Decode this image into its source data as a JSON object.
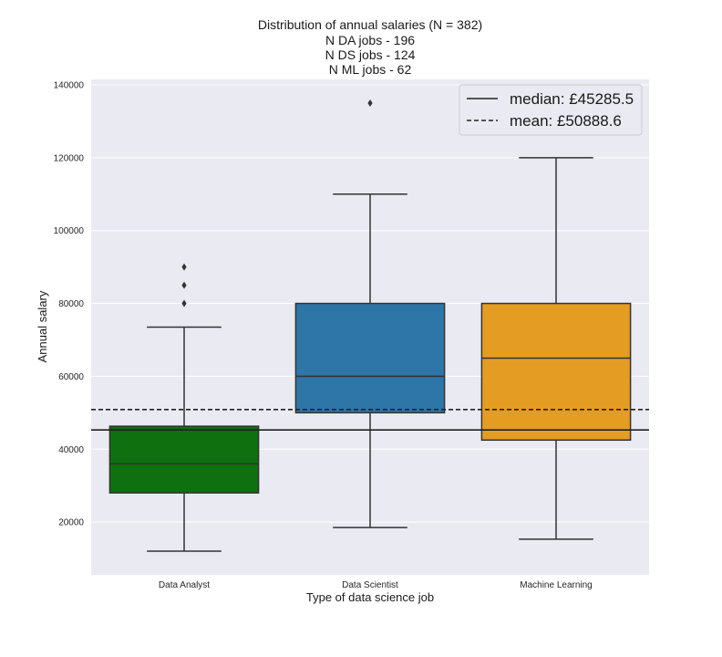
{
  "chart_data": {
    "type": "box",
    "title_lines": [
      "Distribution of annual salaries (N = 382)",
      "N DA jobs - 196",
      "N DS jobs - 124",
      "N ML jobs -  62"
    ],
    "xlabel": "Type of data science job",
    "ylabel": "Annual salary",
    "ylim": [
      5500,
      141500
    ],
    "yticks": [
      20000,
      40000,
      60000,
      80000,
      100000,
      120000,
      140000
    ],
    "grid": true,
    "categories": [
      "Data Analyst",
      "Data Scientist",
      "Machine Learning"
    ],
    "boxes": [
      {
        "category": "Data Analyst",
        "color": "#0e700e",
        "whisker_low": 12000,
        "q1": 28000,
        "median": 36000,
        "q3": 46300,
        "whisker_high": 73500,
        "outliers": [
          80000,
          85000,
          90000
        ]
      },
      {
        "category": "Data Scientist",
        "color": "#2e75a8",
        "whisker_low": 18500,
        "q1": 50000,
        "median": 60000,
        "q3": 80000,
        "whisker_high": 110000,
        "outliers": [
          135000
        ]
      },
      {
        "category": "Machine Learning",
        "color": "#e49c23",
        "whisker_low": 15300,
        "q1": 42500,
        "median": 65000,
        "q3": 80000,
        "whisker_high": 120000,
        "outliers": []
      }
    ],
    "reference_lines": [
      {
        "label": "median: £45285.5",
        "value": 45285.5,
        "style": "solid"
      },
      {
        "label": "mean: £50888.6",
        "value": 50888.6,
        "style": "dashed"
      }
    ],
    "legend_position": "top-right"
  }
}
